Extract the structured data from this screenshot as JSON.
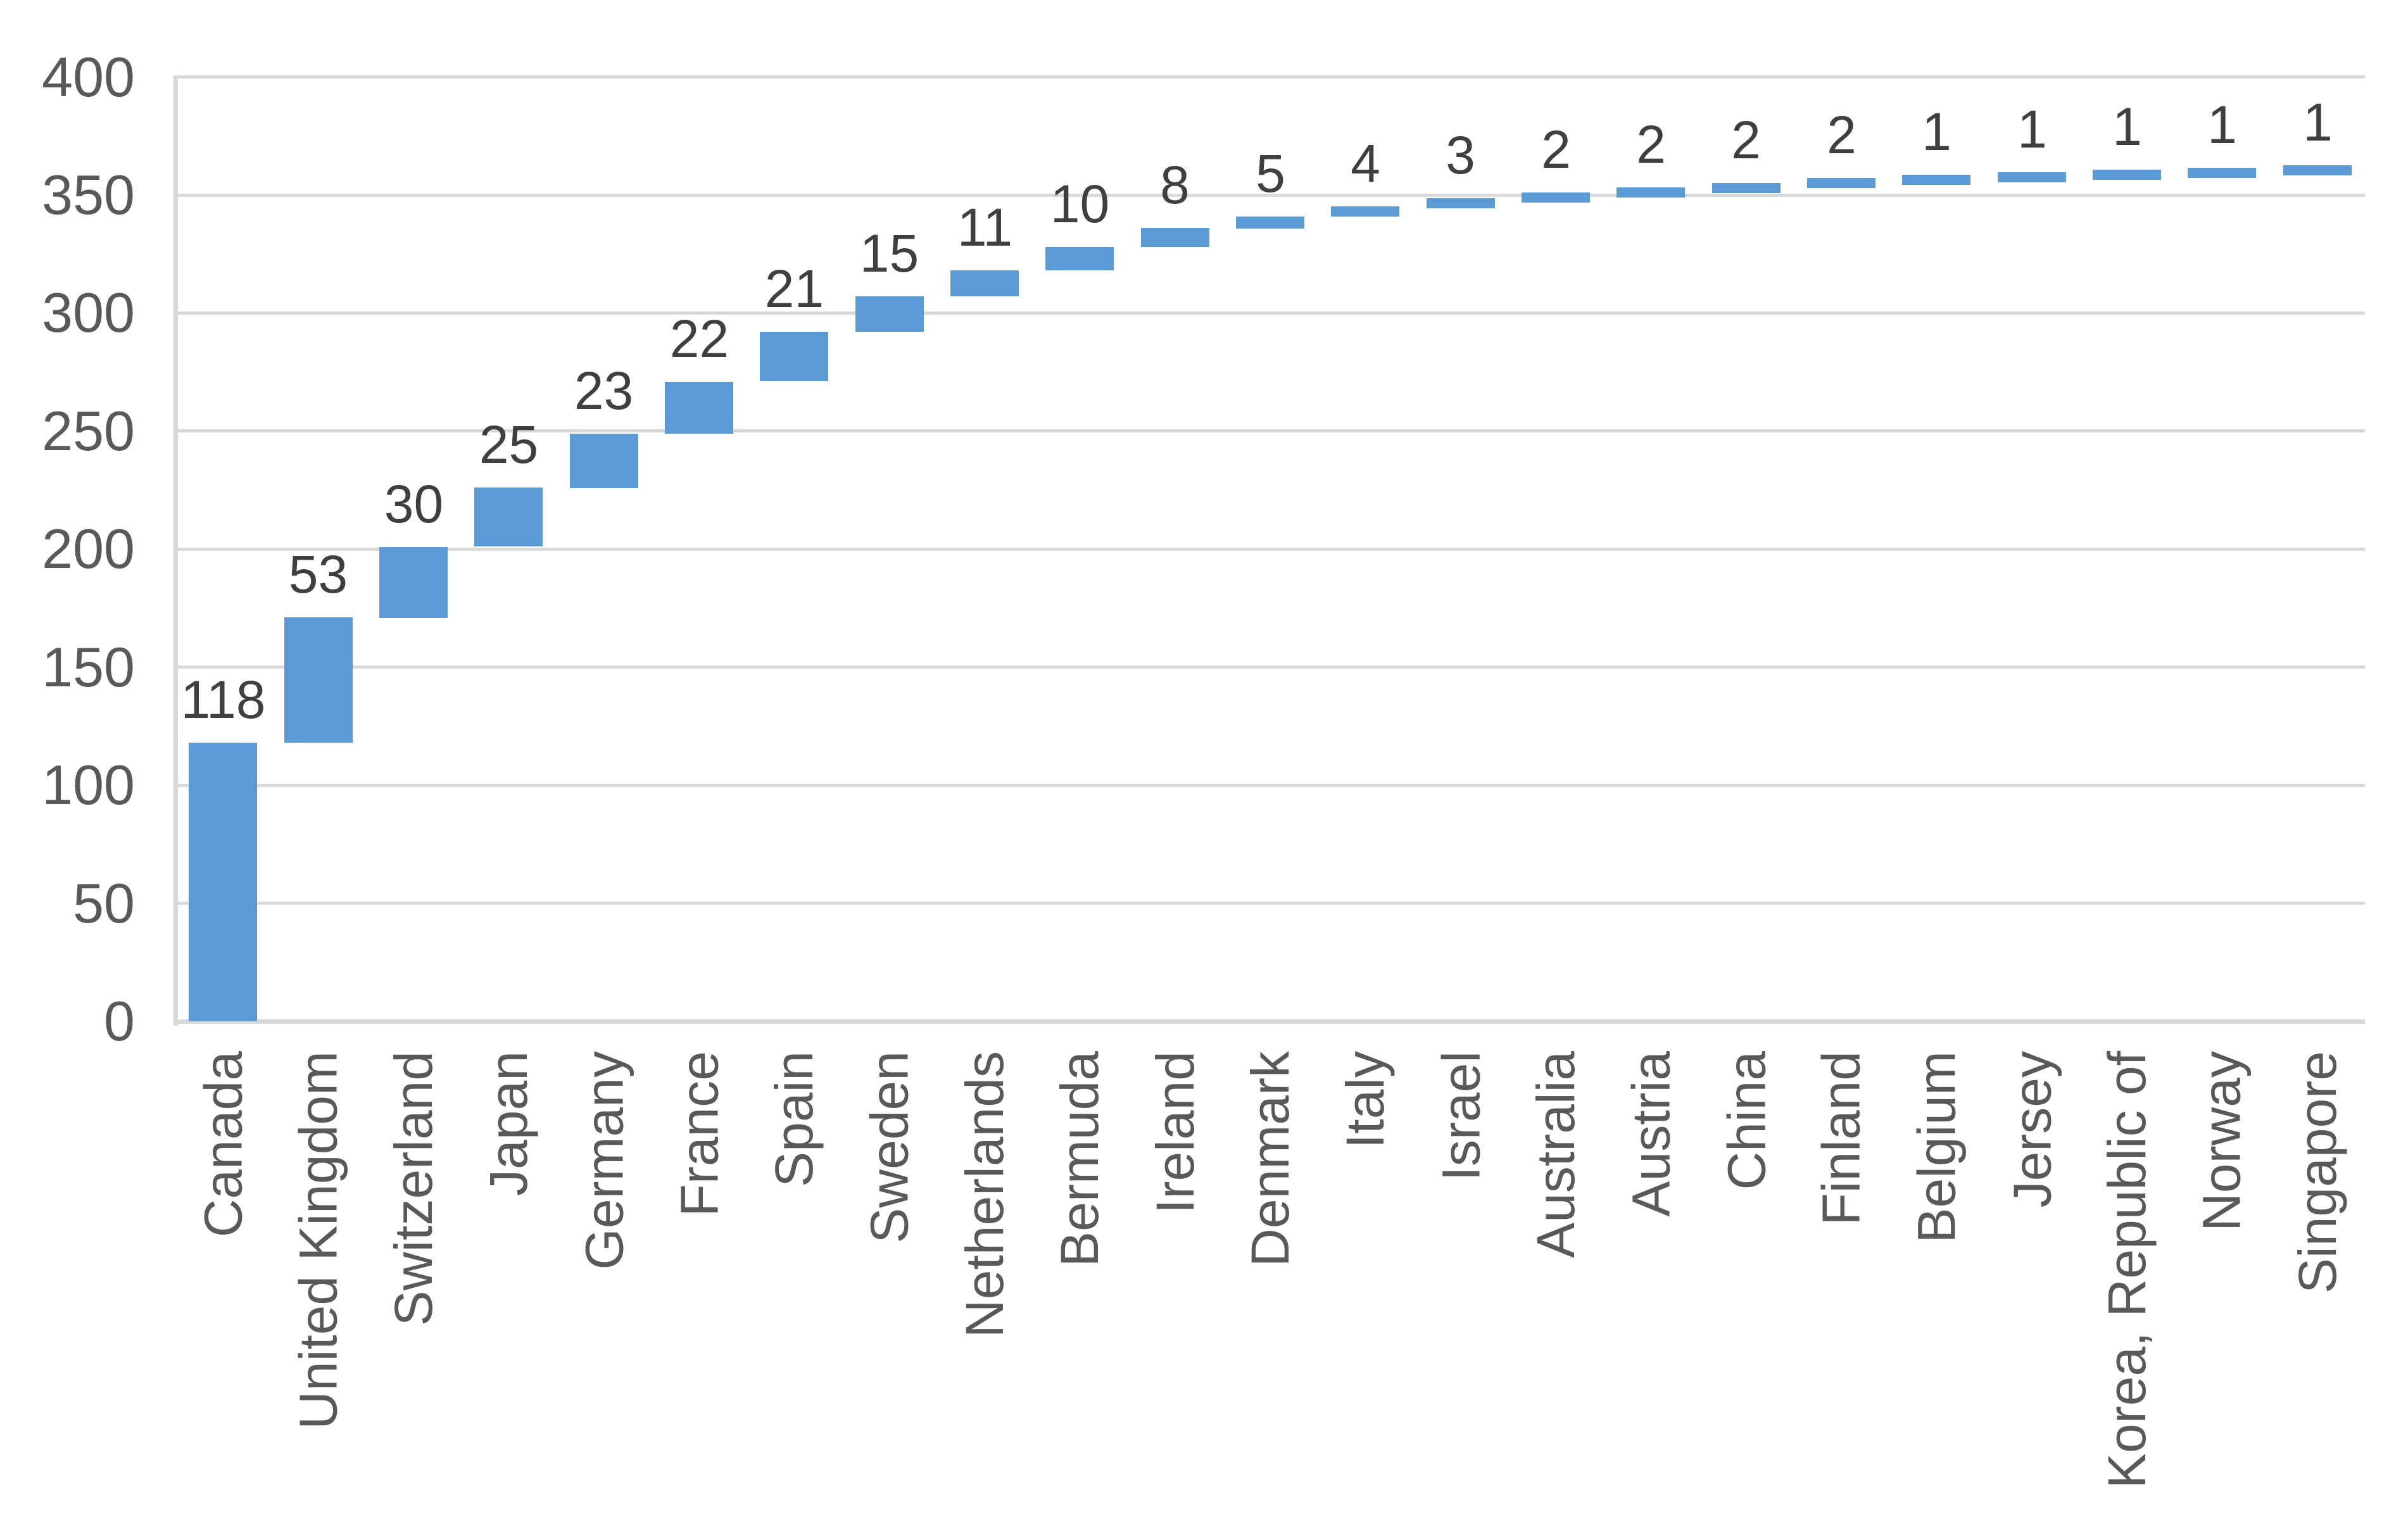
{
  "chart_data": {
    "type": "bar",
    "subtype": "waterfall",
    "title": "",
    "xlabel": "",
    "ylabel": "",
    "categories": [
      "Canada",
      "United Kingdom",
      "Switzerland",
      "Japan",
      "Germany",
      "France",
      "Spain",
      "Sweden",
      "Netherlands",
      "Bermuda",
      "Ireland",
      "Denmark",
      "Italy",
      "Israel",
      "Australia",
      "Austria",
      "China",
      "Finland",
      "Belgium",
      "Jersey",
      "Korea, Republic of",
      "Norway",
      "Singapore"
    ],
    "values": [
      118,
      53,
      30,
      25,
      23,
      22,
      21,
      15,
      11,
      10,
      8,
      5,
      4,
      3,
      2,
      2,
      2,
      2,
      1,
      1,
      1,
      1,
      1
    ],
    "data_labels": [
      118,
      53,
      30,
      25,
      23,
      22,
      21,
      15,
      11,
      10,
      8,
      5,
      4,
      3,
      2,
      2,
      2,
      2,
      1,
      1,
      1,
      1,
      1
    ],
    "data_label_position": "above-bar",
    "ylim": [
      0,
      400
    ],
    "y_ticks": [
      0,
      50,
      100,
      150,
      200,
      250,
      300,
      350,
      400
    ],
    "grid": "horizontal",
    "legend": "none",
    "category_label_rotation": -90,
    "colors": {
      "bar": "#5B9BD5",
      "gridline": "#D9D9D9",
      "axis_line": "#D9D9D9",
      "value_label": "#3F3F3F",
      "axis_label": "#595959",
      "background": "#FFFFFF"
    }
  }
}
